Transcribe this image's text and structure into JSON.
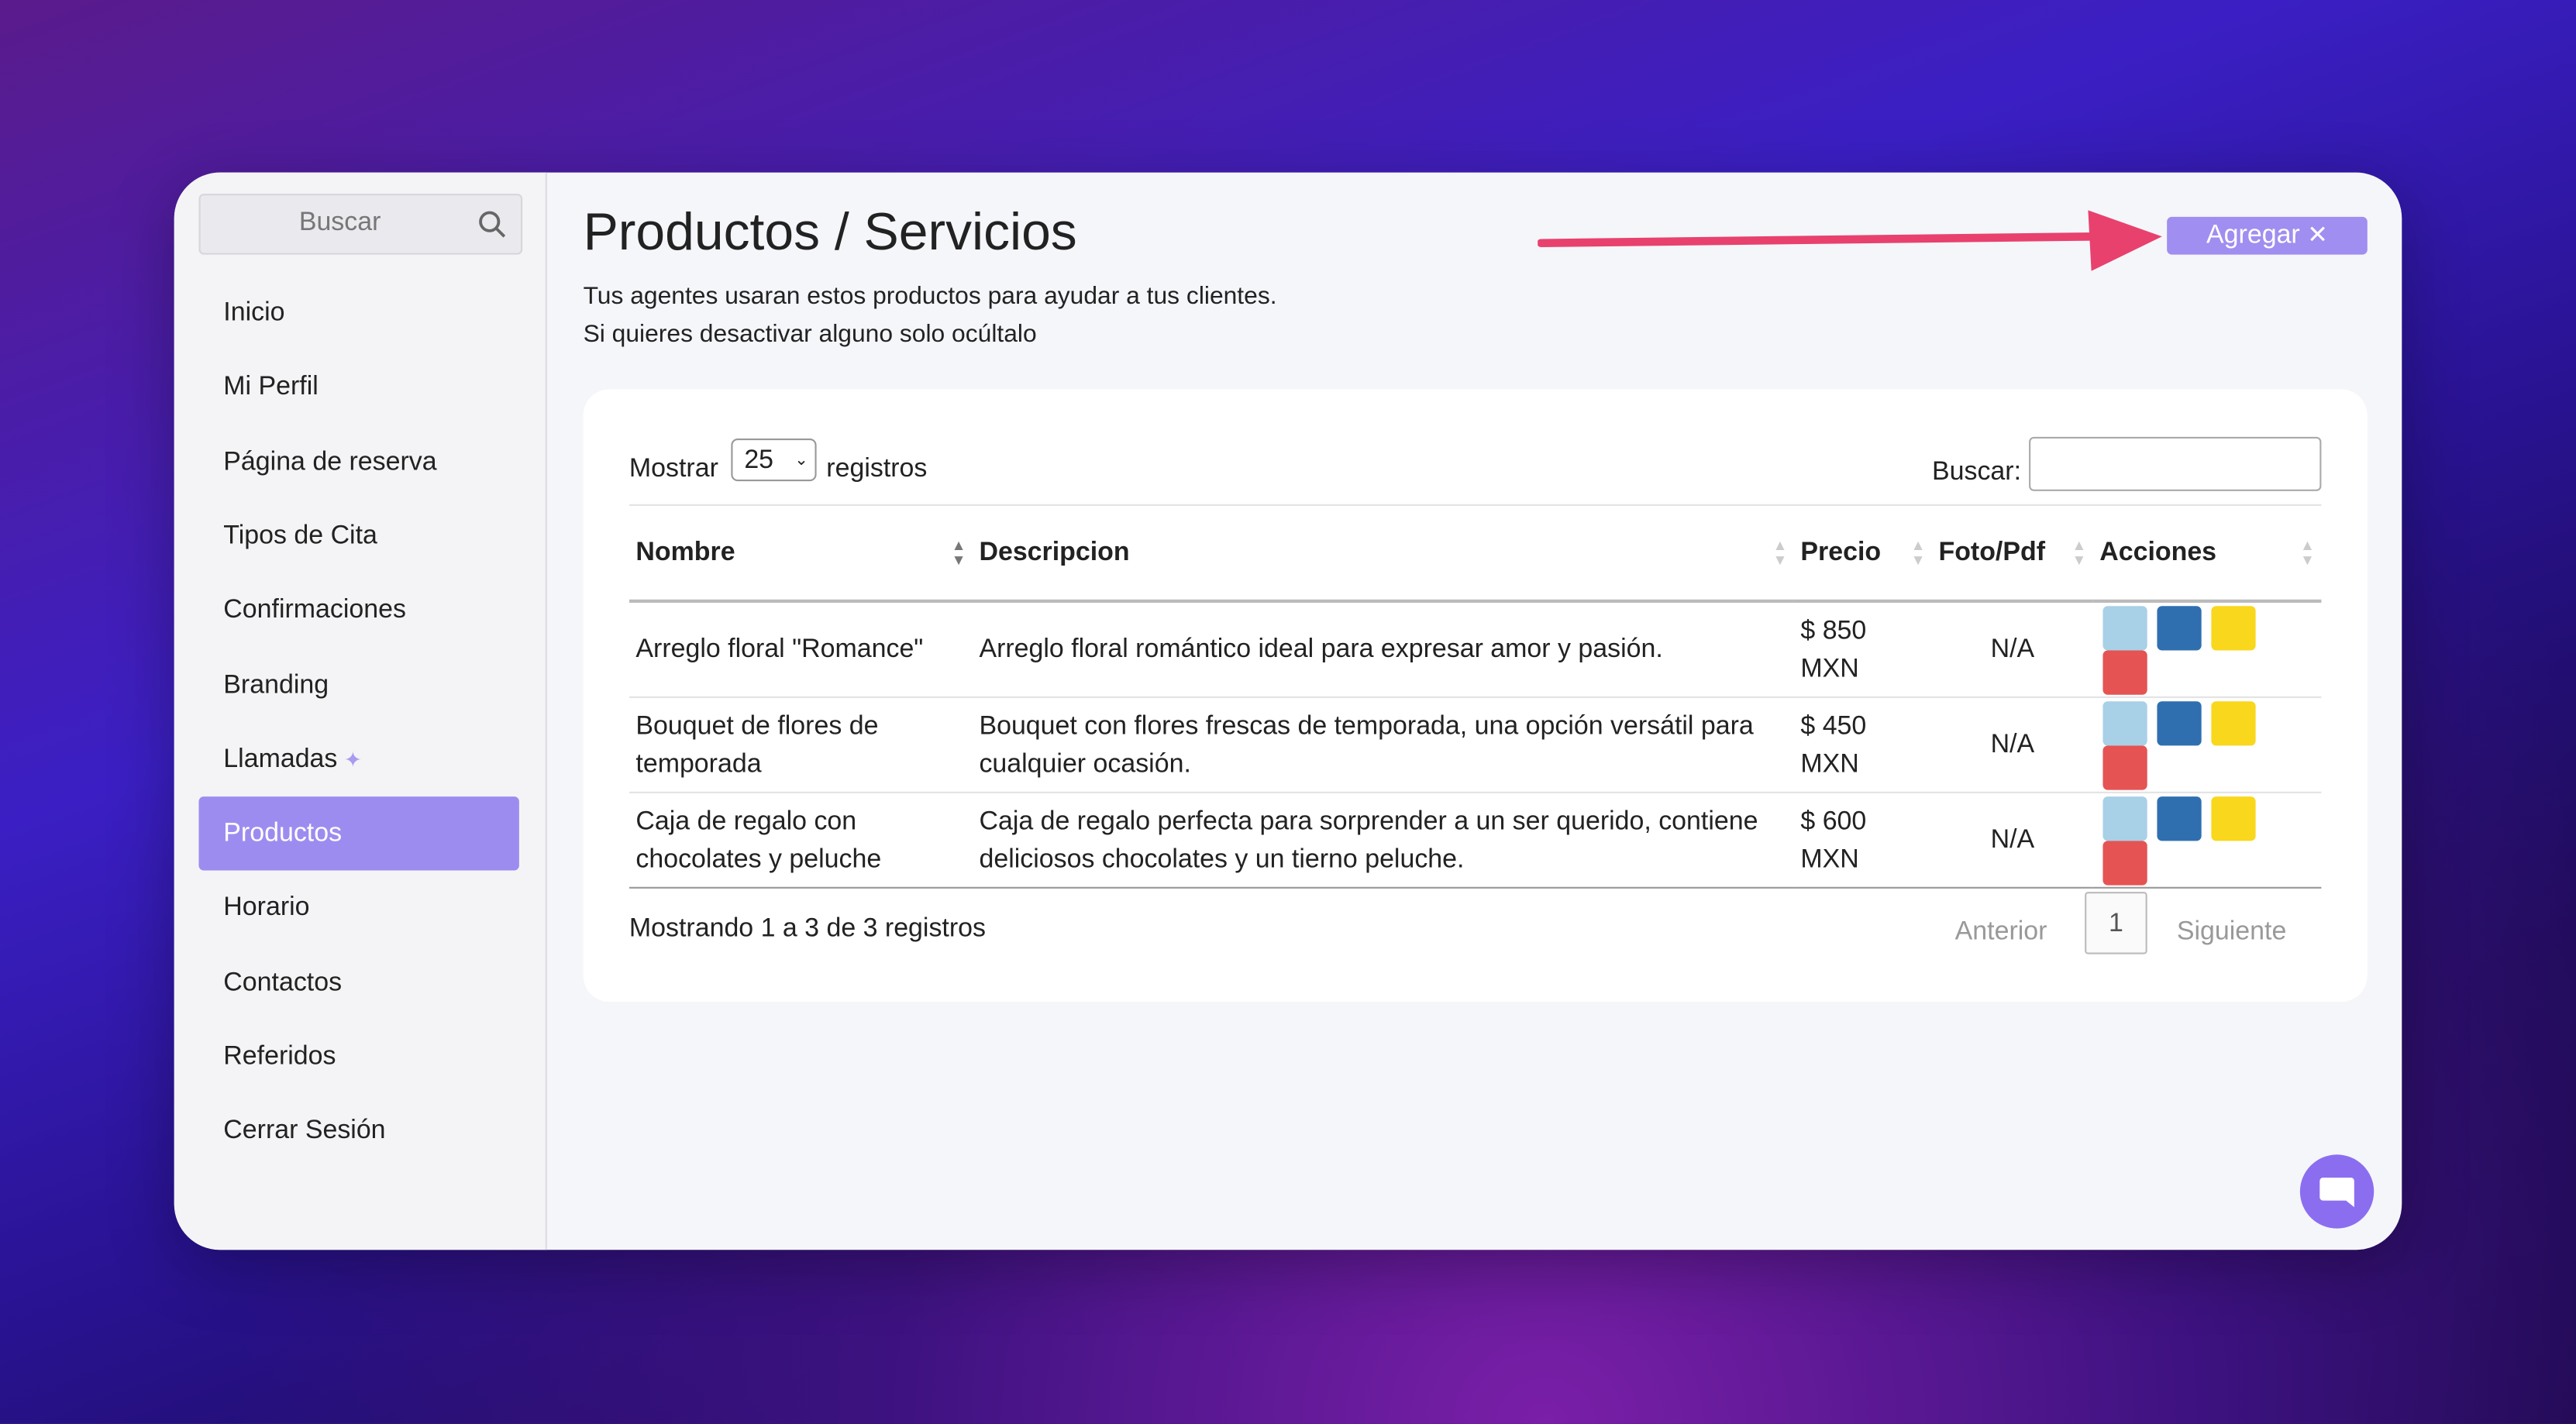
{
  "sidebar": {
    "search_placeholder": "Buscar",
    "nav": [
      "Inicio",
      "Mi Perfil",
      "Página de reserva",
      "Tipos de Cita",
      "Confirmaciones",
      "Branding",
      "Llamadas",
      "Productos",
      "Horario",
      "Contactos",
      "Referidos",
      "Cerrar Sesión"
    ],
    "active": "Productos"
  },
  "header": {
    "title": "Productos / Servicios",
    "description": [
      "Tus agentes usaran estos productos para ayudar a tus clientes.",
      "Si quieres desactivar alguno solo ocúltalo"
    ],
    "add_button": "Agregar"
  },
  "table": {
    "length_label_before": "Mostrar",
    "length_value": "25",
    "length_label_after": "registros",
    "search_label": "Buscar:",
    "columns": [
      "Nombre",
      "Descripcion",
      "Precio",
      "Foto/Pdf",
      "Acciones"
    ],
    "rows": [
      [
        "Arreglo floral \"Romance\"",
        "Arreglo floral romántico ideal para expresar amor y pasión.",
        "$ 850 MXN",
        "N/A"
      ],
      [
        "Bouquet de flores de temporada",
        "Bouquet con flores frescas de temporada, una opción versátil para cualquier ocasión.",
        "$ 450 MXN",
        "N/A"
      ],
      [
        "Caja de regalo con chocolates y peluche",
        "Caja de regalo perfecta para sorprender a un ser querido, contiene deliciosos chocolates y un tierno peluche.",
        "$ 600 MXN",
        "N/A"
      ]
    ],
    "info": "Mostrando 1 a 3 de 3 registros",
    "pagination": {
      "previous": "Anterior",
      "current": "1",
      "next": "Siguiente"
    }
  }
}
